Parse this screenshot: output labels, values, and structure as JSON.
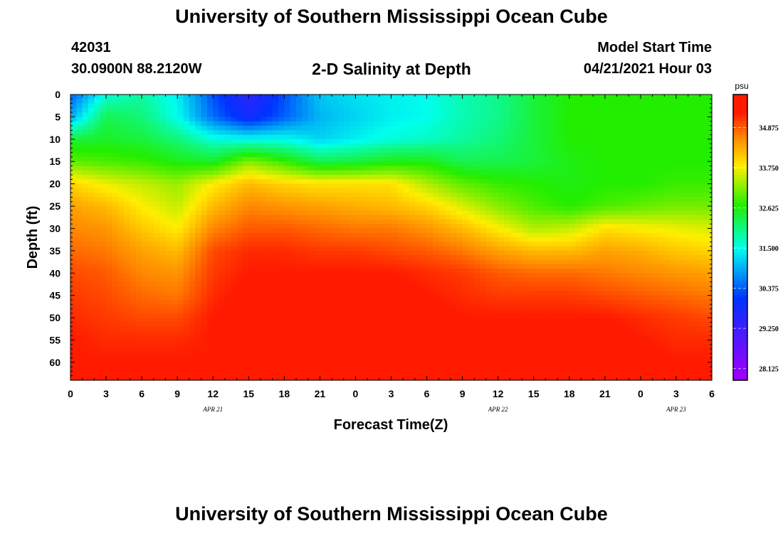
{
  "header": {
    "title": "University of Southern Mississippi Ocean Cube",
    "station_id": "42031",
    "station_coords": "30.0900N  88.2120W",
    "plot_title": "2-D Salinity at Depth",
    "model_start_label": "Model Start Time",
    "model_start_value": "04/21/2021 Hour 03"
  },
  "footer": {
    "title": "University of Southern Mississippi Ocean Cube"
  },
  "colors": {
    "purple": "#9900ff",
    "blue": "#0033ff",
    "cyan": "#00ffee",
    "green": "#22ee00",
    "yellow": "#ffee00",
    "orange": "#ff8800",
    "red": "#ff1a00"
  },
  "chart_data": {
    "type": "heatmap",
    "title": "2-D Salinity at Depth",
    "xlabel": "Forecast Time(Z)",
    "ylabel": "Depth (ft)",
    "x_hours_range": [
      0,
      54
    ],
    "y_range": [
      0,
      64
    ],
    "x_tick_labels": [
      "0",
      "3",
      "6",
      "9",
      "12",
      "15",
      "18",
      "21",
      "0",
      "3",
      "6",
      "9",
      "12",
      "15",
      "18",
      "21",
      "0",
      "3",
      "6"
    ],
    "date_labels": [
      {
        "text": "APR 21",
        "hour": 12
      },
      {
        "text": "APR 22",
        "hour": 36
      },
      {
        "text": "APR 23",
        "hour": 51
      }
    ],
    "y_ticks": [
      0,
      5,
      10,
      15,
      20,
      25,
      30,
      35,
      40,
      45,
      50,
      55,
      60
    ],
    "colorbar": {
      "unit": "psu",
      "min": 27.8,
      "max": 35.8,
      "tick_values": [
        28.125,
        29.25,
        30.375,
        31.5,
        32.625,
        33.75,
        34.875
      ],
      "tick_labels": [
        "28.125",
        "29.250",
        "30.375",
        "31.500",
        "32.625",
        "33.750",
        "34.875"
      ]
    },
    "grid": {
      "x_hours": [
        0,
        3,
        6,
        9,
        12,
        15,
        18,
        21,
        24,
        27,
        30,
        33,
        36,
        39,
        42,
        45,
        48,
        51,
        54
      ],
      "depths": [
        0,
        5,
        10,
        15,
        20,
        25,
        30,
        35,
        40,
        45,
        50,
        55,
        60,
        64
      ],
      "salinity_psu": [
        [
          30.4,
          31.6,
          31.9,
          31.4,
          30.3,
          29.5,
          30.3,
          31.1,
          31.3,
          31.4,
          31.5,
          31.8,
          32.0,
          32.4,
          32.7,
          32.7,
          32.7,
          32.7,
          32.7
        ],
        [
          30.9,
          32.3,
          32.1,
          31.5,
          30.5,
          29.8,
          30.4,
          31.0,
          31.2,
          31.4,
          31.5,
          31.8,
          32.0,
          32.4,
          32.7,
          32.7,
          32.7,
          32.7,
          32.7
        ],
        [
          32.4,
          32.5,
          32.4,
          32.1,
          31.6,
          31.5,
          31.5,
          31.2,
          31.4,
          31.6,
          31.7,
          31.9,
          32.1,
          32.4,
          32.7,
          32.7,
          32.7,
          32.7,
          32.7
        ],
        [
          33.0,
          32.9,
          32.8,
          32.6,
          32.5,
          33.2,
          32.8,
          32.3,
          32.4,
          32.6,
          32.6,
          32.3,
          32.3,
          32.4,
          32.6,
          32.7,
          32.7,
          32.7,
          32.7
        ],
        [
          34.0,
          33.7,
          33.5,
          33.3,
          33.8,
          34.2,
          34.0,
          33.9,
          33.9,
          33.9,
          33.4,
          33.0,
          32.8,
          32.7,
          32.6,
          32.7,
          32.7,
          32.8,
          32.8
        ],
        [
          34.4,
          34.2,
          33.8,
          33.5,
          34.2,
          34.6,
          34.5,
          34.4,
          34.3,
          34.2,
          34.0,
          33.6,
          33.2,
          32.9,
          32.7,
          32.9,
          33.0,
          33.1,
          33.1
        ],
        [
          34.6,
          34.5,
          34.1,
          33.8,
          34.6,
          34.9,
          34.9,
          34.8,
          34.7,
          34.7,
          34.5,
          34.2,
          33.8,
          33.4,
          33.5,
          33.9,
          33.8,
          33.7,
          33.6
        ],
        [
          34.8,
          34.7,
          34.4,
          34.2,
          35.0,
          35.2,
          35.2,
          35.1,
          35.1,
          35.0,
          34.9,
          34.7,
          34.4,
          34.2,
          34.2,
          34.4,
          34.3,
          34.1,
          34.0
        ],
        [
          35.0,
          34.9,
          34.6,
          34.5,
          35.1,
          35.3,
          35.3,
          35.3,
          35.3,
          35.3,
          35.2,
          35.1,
          34.9,
          34.8,
          34.8,
          34.7,
          34.6,
          34.5,
          34.4
        ],
        [
          35.1,
          35.0,
          34.8,
          34.7,
          35.2,
          35.4,
          35.4,
          35.4,
          35.4,
          35.4,
          35.3,
          35.2,
          35.1,
          35.1,
          35.1,
          35.0,
          34.9,
          34.8,
          34.7
        ],
        [
          35.2,
          35.1,
          35.0,
          35.0,
          35.3,
          35.4,
          35.4,
          35.4,
          35.4,
          35.4,
          35.4,
          35.3,
          35.3,
          35.3,
          35.3,
          35.3,
          35.2,
          35.1,
          35.0
        ],
        [
          35.3,
          35.2,
          35.2,
          35.2,
          35.3,
          35.4,
          35.4,
          35.4,
          35.4,
          35.4,
          35.4,
          35.4,
          35.4,
          35.5,
          35.5,
          35.4,
          35.3,
          35.2,
          35.2
        ],
        [
          35.3,
          35.3,
          35.3,
          35.3,
          35.3,
          35.4,
          35.4,
          35.4,
          35.4,
          35.4,
          35.4,
          35.4,
          35.4,
          35.5,
          35.5,
          35.4,
          35.4,
          35.3,
          35.3
        ],
        [
          35.3,
          35.3,
          35.3,
          35.3,
          35.3,
          35.4,
          35.4,
          35.4,
          35.4,
          35.4,
          35.4,
          35.4,
          35.4,
          35.5,
          35.5,
          35.4,
          35.4,
          35.3,
          35.3
        ]
      ]
    }
  }
}
